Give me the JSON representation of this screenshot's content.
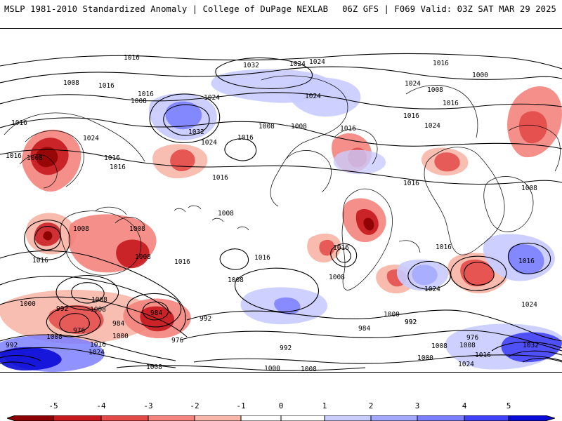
{
  "header": {
    "left_title": "MSLP 1981-2010 Standardized Anomaly | College of DuPage NEXLAB",
    "right_info": "06Z GFS | F069 Valid: 03Z SAT MAR 29 2025"
  },
  "map": {
    "contour_labels": [
      "1016",
      "1032",
      "1024",
      "1016",
      "1008",
      "1016",
      "1016",
      "1008",
      "1024",
      "1024",
      "1016",
      "1016",
      "1008",
      "1000",
      "1024",
      "1016",
      "1024",
      "1032",
      "1024",
      "1024",
      "1016",
      "1008",
      "1016",
      "1016",
      "1008",
      "1008",
      "1016",
      "1016",
      "1008",
      "1016",
      "1016",
      "1008",
      "1008",
      "1008",
      "1008",
      "1016",
      "1016",
      "1016",
      "1008",
      "1016",
      "1016",
      "1016",
      "1008",
      "1024",
      "1008",
      "1000",
      "992",
      "1008",
      "984",
      "976",
      "984",
      "1000",
      "992",
      "976",
      "1008",
      "1016",
      "1024",
      "1008",
      "992",
      "984",
      "992",
      "1000",
      "976",
      "992",
      "1008",
      "1016",
      "1000",
      "1008",
      "1032",
      "1024",
      "1000",
      "1008",
      "992",
      "1024",
      "1024"
    ]
  },
  "legend": {
    "tick_labels": [
      "-5",
      "-4",
      "-3",
      "-2",
      "-1",
      "0",
      "1",
      "2",
      "3",
      "4",
      "5"
    ],
    "colors": [
      "#8b0000",
      "#c7181e",
      "#e34a48",
      "#f3837c",
      "#f8b7aa",
      "#ffffff",
      "#ffffff",
      "#c9ccff",
      "#a3a8ff",
      "#7b7fff",
      "#4141f7",
      "#0a0ad7"
    ]
  }
}
